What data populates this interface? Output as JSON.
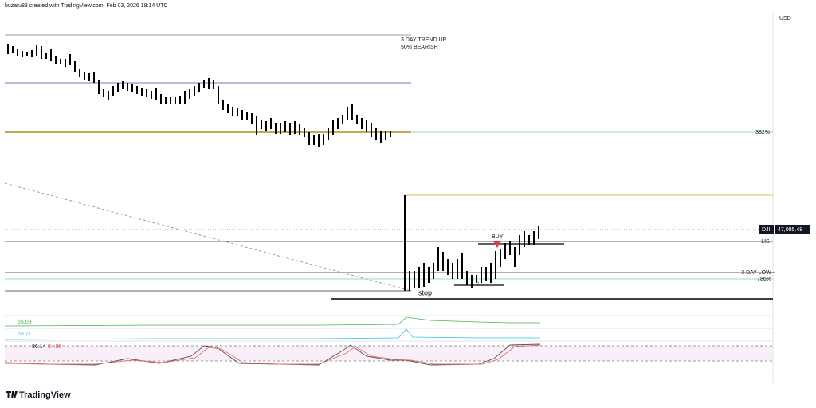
{
  "header": {
    "credit": "buzatu88 created with TradingView.com, Feb 03, 2026 18:14 UTC",
    "currency": "USD"
  },
  "annotations": {
    "trend": "3 DAY TREND UP",
    "bearish": "50% BEARISH",
    "buy": "BUY",
    "stop": "stop",
    "zero": "0"
  },
  "levels": {
    "fib382": "382%",
    "lis": "LIS -",
    "three_day_low": "3 DAY LOW -",
    "fib786": "786%"
  },
  "price_tag": {
    "symbol": "DJI",
    "price": "47,095.48"
  },
  "indicators": {
    "first": "65.09",
    "second": "63.71",
    "stoch_k": "86.14",
    "stoch_d": "84.96"
  },
  "footer": {
    "brand": "TradingView"
  }
}
